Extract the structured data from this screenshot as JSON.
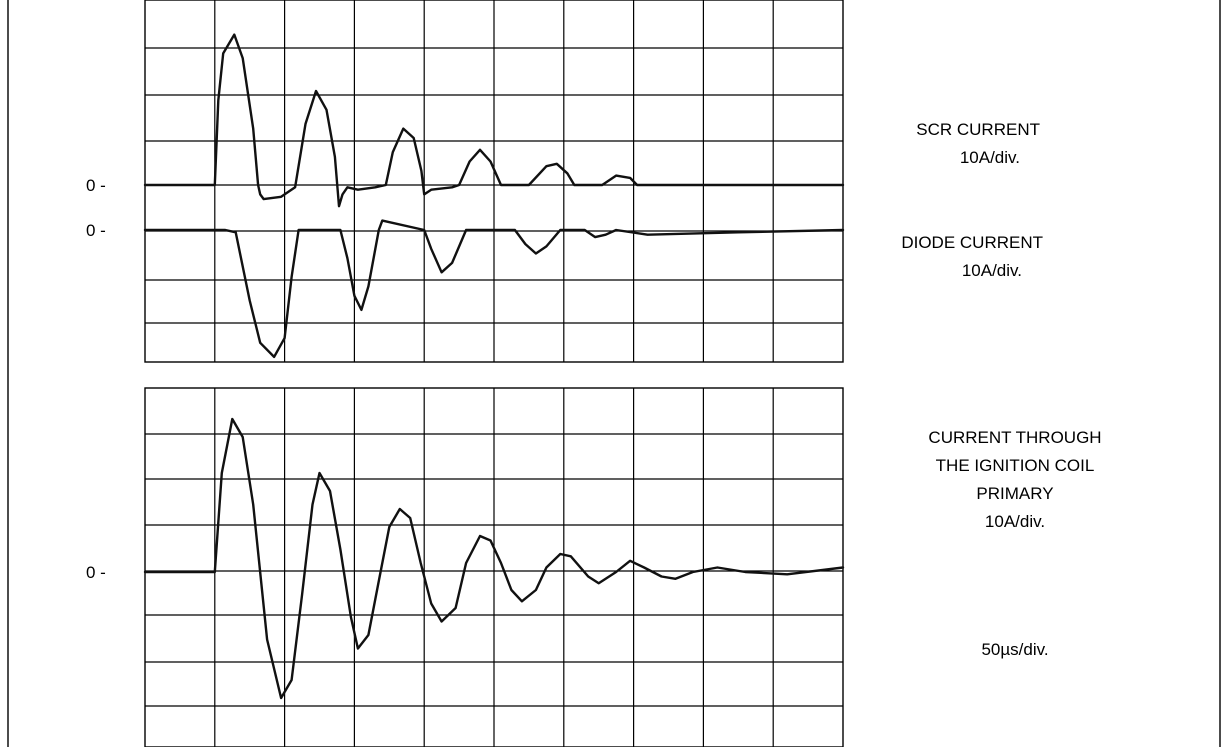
{
  "chart_data": [
    {
      "type": "line",
      "zero_marker": "0 -",
      "series": [
        {
          "name": "SCR CURRENT",
          "scale": "10A/div.",
          "points": [
            [
              0,
              0
            ],
            [
              1.0,
              0
            ],
            [
              1.05,
              1.8
            ],
            [
              1.12,
              2.8
            ],
            [
              1.28,
              3.2
            ],
            [
              1.4,
              2.7
            ],
            [
              1.55,
              1.2
            ],
            [
              1.62,
              0
            ],
            [
              1.65,
              -0.2
            ],
            [
              1.7,
              -0.3
            ],
            [
              1.95,
              -0.25
            ],
            [
              2.15,
              -0.05
            ],
            [
              2.3,
              1.3
            ],
            [
              2.45,
              2.0
            ],
            [
              2.6,
              1.6
            ],
            [
              2.72,
              0.6
            ],
            [
              2.78,
              -0.45
            ],
            [
              2.83,
              -0.2
            ],
            [
              2.9,
              -0.05
            ],
            [
              3.05,
              -0.1
            ],
            [
              3.3,
              -0.05
            ],
            [
              3.45,
              0
            ],
            [
              3.55,
              0.7
            ],
            [
              3.7,
              1.2
            ],
            [
              3.85,
              1.0
            ],
            [
              3.96,
              0.3
            ],
            [
              4.0,
              -0.2
            ],
            [
              4.1,
              -0.1
            ],
            [
              4.4,
              -0.05
            ],
            [
              4.5,
              0
            ],
            [
              4.65,
              0.5
            ],
            [
              4.8,
              0.75
            ],
            [
              4.95,
              0.5
            ],
            [
              5.1,
              0
            ],
            [
              5.5,
              0
            ],
            [
              5.75,
              0.4
            ],
            [
              5.9,
              0.45
            ],
            [
              6.05,
              0.25
            ],
            [
              6.15,
              0
            ],
            [
              6.55,
              0
            ],
            [
              6.75,
              0.2
            ],
            [
              6.95,
              0.15
            ],
            [
              7.05,
              0
            ],
            [
              10,
              0
            ]
          ]
        },
        {
          "name": "DIODE CURRENT",
          "scale": "10A/div.",
          "points": [
            [
              0,
              0
            ],
            [
              1.15,
              0
            ],
            [
              1.3,
              -0.05
            ],
            [
              1.5,
              -1.5
            ],
            [
              1.65,
              -2.4
            ],
            [
              1.85,
              -2.7
            ],
            [
              2.0,
              -2.3
            ],
            [
              2.1,
              -1.0
            ],
            [
              2.2,
              0
            ],
            [
              2.8,
              0
            ],
            [
              2.9,
              -0.6
            ],
            [
              3.0,
              -1.4
            ],
            [
              3.1,
              -1.7
            ],
            [
              3.2,
              -1.2
            ],
            [
              3.35,
              0
            ],
            [
              3.4,
              0.2
            ],
            [
              4.0,
              0
            ],
            [
              4.1,
              -0.4
            ],
            [
              4.25,
              -0.9
            ],
            [
              4.4,
              -0.7
            ],
            [
              4.6,
              0
            ],
            [
              5.3,
              0
            ],
            [
              5.45,
              -0.3
            ],
            [
              5.6,
              -0.5
            ],
            [
              5.75,
              -0.35
            ],
            [
              5.95,
              0
            ],
            [
              6.3,
              0
            ],
            [
              6.45,
              -0.15
            ],
            [
              6.6,
              -0.1
            ],
            [
              6.75,
              0
            ],
            [
              7.2,
              -0.1
            ],
            [
              8.5,
              -0.05
            ],
            [
              10,
              0
            ]
          ]
        }
      ]
    },
    {
      "type": "line",
      "zero_marker": "0 -",
      "series": [
        {
          "name": "CURRENT THROUGH THE IGNITION COIL PRIMARY",
          "scale": "10A/div.",
          "points": [
            [
              0,
              0
            ],
            [
              1.0,
              0
            ],
            [
              1.1,
              2.2
            ],
            [
              1.25,
              3.4
            ],
            [
              1.4,
              3.0
            ],
            [
              1.55,
              1.5
            ],
            [
              1.75,
              -1.5
            ],
            [
              1.95,
              -2.8
            ],
            [
              2.1,
              -2.4
            ],
            [
              2.25,
              -0.5
            ],
            [
              2.4,
              1.5
            ],
            [
              2.5,
              2.2
            ],
            [
              2.65,
              1.8
            ],
            [
              2.8,
              0.5
            ],
            [
              2.95,
              -1.0
            ],
            [
              3.05,
              -1.7
            ],
            [
              3.2,
              -1.4
            ],
            [
              3.35,
              -0.2
            ],
            [
              3.5,
              1.0
            ],
            [
              3.65,
              1.4
            ],
            [
              3.8,
              1.2
            ],
            [
              3.95,
              0.2
            ],
            [
              4.1,
              -0.7
            ],
            [
              4.25,
              -1.1
            ],
            [
              4.45,
              -0.8
            ],
            [
              4.6,
              0.2
            ],
            [
              4.8,
              0.8
            ],
            [
              4.95,
              0.7
            ],
            [
              5.1,
              0.2
            ],
            [
              5.25,
              -0.4
            ],
            [
              5.4,
              -0.65
            ],
            [
              5.6,
              -0.4
            ],
            [
              5.75,
              0.1
            ],
            [
              5.95,
              0.4
            ],
            [
              6.1,
              0.35
            ],
            [
              6.35,
              -0.1
            ],
            [
              6.5,
              -0.25
            ],
            [
              6.75,
              0
            ],
            [
              6.95,
              0.25
            ],
            [
              7.15,
              0.1
            ],
            [
              7.4,
              -0.1
            ],
            [
              7.6,
              -0.15
            ],
            [
              7.85,
              0
            ],
            [
              8.2,
              0.1
            ],
            [
              8.6,
              0
            ],
            [
              9.2,
              -0.05
            ],
            [
              10,
              0.1
            ]
          ]
        }
      ]
    }
  ],
  "timebase": "50µs/div."
}
